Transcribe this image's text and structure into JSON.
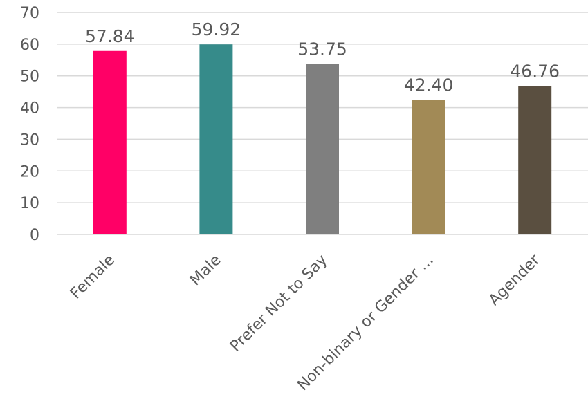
{
  "chart_data": {
    "type": "bar",
    "title": "",
    "xlabel": "",
    "ylabel": "",
    "categories": [
      "Female",
      "Male",
      "Prefer Not to Say",
      "Non-binary or Gender ...",
      "Agender"
    ],
    "values": [
      57.84,
      59.92,
      53.75,
      42.4,
      46.76
    ],
    "value_labels": [
      "57.84",
      "59.92",
      "53.75",
      "42.40",
      "46.76"
    ],
    "colors": [
      "#FF0066",
      "#368B8A",
      "#7F7F7F",
      "#A28A56",
      "#5A4F40"
    ],
    "ylim": [
      0,
      70
    ],
    "yticks": [
      0,
      10,
      20,
      30,
      40,
      50,
      60,
      70
    ],
    "grid": true,
    "legend": "none"
  }
}
